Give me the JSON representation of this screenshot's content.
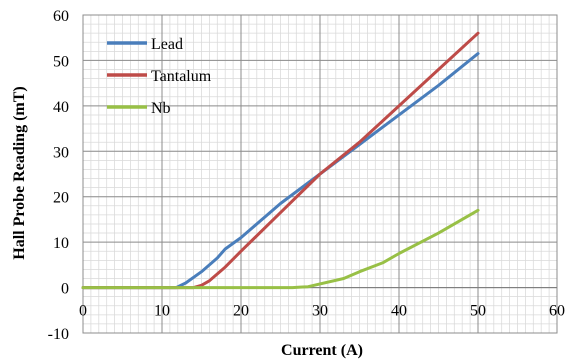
{
  "chart_data": {
    "type": "line",
    "title": "",
    "xlabel": "Current (A)",
    "ylabel": "Hall Probe Reading (mT)",
    "xlim": [
      0,
      60
    ],
    "ylim": [
      -10,
      60
    ],
    "x_ticks": [
      0,
      10,
      20,
      30,
      40,
      50,
      60
    ],
    "y_ticks": [
      -10,
      0,
      10,
      20,
      30,
      40,
      50,
      60
    ],
    "x_minor_step": 1,
    "y_minor_step": 2,
    "grid": true,
    "legend_position": "top-left",
    "series": [
      {
        "name": "Lead",
        "color": "#4a7ebb",
        "points": [
          [
            0,
            0
          ],
          [
            11.8,
            0
          ],
          [
            13,
            1
          ],
          [
            15,
            3.5
          ],
          [
            17,
            6.5
          ],
          [
            18,
            8.5
          ],
          [
            20,
            11
          ],
          [
            25,
            18.5
          ],
          [
            30,
            25
          ],
          [
            35,
            31.5
          ],
          [
            40,
            38
          ],
          [
            45,
            44.5
          ],
          [
            50,
            51.5
          ]
        ]
      },
      {
        "name": "Tantalum",
        "color": "#be4b48",
        "points": [
          [
            0,
            0
          ],
          [
            14,
            0
          ],
          [
            15,
            0.5
          ],
          [
            16,
            1.5
          ],
          [
            18,
            4.5
          ],
          [
            20,
            8
          ],
          [
            25,
            16.5
          ],
          [
            30,
            25
          ],
          [
            35,
            32
          ],
          [
            40,
            40
          ],
          [
            45,
            48
          ],
          [
            50,
            56
          ]
        ]
      },
      {
        "name": "Nb",
        "color": "#98c046",
        "points": [
          [
            0,
            0
          ],
          [
            26.5,
            0
          ],
          [
            27.5,
            0.1
          ],
          [
            28.5,
            0.2
          ],
          [
            30,
            0.8
          ],
          [
            33,
            2
          ],
          [
            35,
            3.5
          ],
          [
            38,
            5.5
          ],
          [
            40,
            7.5
          ],
          [
            45,
            12
          ],
          [
            50,
            17
          ]
        ]
      }
    ]
  }
}
